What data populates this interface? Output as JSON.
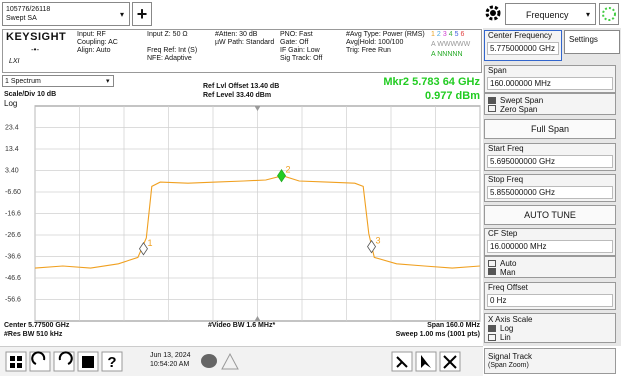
{
  "top_bar": {
    "instrument_id": "105776/26118",
    "mode": "Swept SA",
    "menu": "Frequency"
  },
  "info_bar": {
    "brand": "KEYSIGHT",
    "input": [
      "Input: RF",
      "Coupling: AC",
      "Align: Auto"
    ],
    "reference": [
      "Input Z: 50 Ω",
      "Freq Ref: Int (S)",
      "NFE: Adaptive"
    ],
    "attenuation": [
      "#Atten: 30 dB",
      "µW Path: Standard"
    ],
    "sweep": [
      "PNO: Fast",
      "Gate: Off",
      "IF Gain: Low",
      "Sig Track: Off"
    ],
    "average": [
      "#Avg Type: Power (RMS)",
      "Avg|Hold: 100/100",
      "Trig: Free Run"
    ],
    "trace_numbers": [
      {
        "label": "1",
        "color": "#e8a020"
      },
      {
        "label": "2",
        "color": "#4aa8e0"
      },
      {
        "label": "3",
        "color": "#d040d0"
      },
      {
        "label": "4",
        "color": "#40b040"
      },
      {
        "label": "5",
        "color": "#4060e0"
      },
      {
        "label": "6",
        "color": "#e04040"
      }
    ],
    "trace_types": "A WWWWW",
    "trace_detectors": "A NNNNN"
  },
  "plot": {
    "window": "1 Spectrum",
    "scale": "Scale/Div 10 dB",
    "scale_type": "Log",
    "ref_offset": "Ref Lvl Offset 13.40 dB",
    "ref_level": "Ref Level 33.40 dBm",
    "marker_readout": {
      "frequency": "Mkr2  5.783 64 GHz",
      "amplitude": "0.977 dBm"
    },
    "xlim": [
      5695,
      5855
    ],
    "xticks": [
      5695,
      5711,
      5727,
      5743,
      5759,
      5775,
      5791,
      5807,
      5823,
      5839,
      5855
    ],
    "ylim": [
      -66.6,
      33.4
    ],
    "yticks": [
      23.4,
      13.4,
      {
        "value": 3.4,
        "label": "3.40"
      },
      {
        "value": -6.6,
        "label": "-6.60"
      },
      -16.6,
      -26.6,
      -36.6,
      -46.6,
      -56.6
    ],
    "trace": {
      "color": "#f0a020",
      "x": [
        5695,
        5705,
        5715,
        5725,
        5732,
        5735,
        5737,
        5740,
        5750,
        5760,
        5770,
        5778,
        5784,
        5790,
        5800,
        5810,
        5813,
        5815,
        5817,
        5825,
        5835,
        5845,
        5855
      ],
      "y": [
        -42,
        -41,
        -42,
        -40,
        -37,
        -28,
        -4,
        -2,
        -2.5,
        -2,
        -1.5,
        -1,
        0.98,
        -1.5,
        -2,
        -2.5,
        -4,
        -26,
        -37,
        -40,
        -41,
        -42,
        -41
      ]
    },
    "markers": [
      {
        "label": "1",
        "x": 5734,
        "y": -33
      },
      {
        "label": "2",
        "x": 5783.64,
        "y": 0.977
      },
      {
        "label": "3",
        "x": 5816,
        "y": -32
      }
    ],
    "footer": {
      "center": "Center 5.77500 GHz",
      "res_bw": "#Res BW 510 kHz",
      "video_bw": "#Video BW 1.6 MHz*",
      "span": "Span 160.0 MHz",
      "sweep": "Sweep 1.00 ms (1001 pts)"
    }
  },
  "right_panel": {
    "center_frequency": {
      "label": "Center Frequency",
      "value": "5.775000000 GHz"
    },
    "settings_tab": "Settings",
    "span": {
      "label": "Span",
      "value": "160.000000 MHz"
    },
    "span_modes": [
      "Swept Span",
      "Zero Span"
    ],
    "full_span": "Full Span",
    "start_freq": {
      "label": "Start Freq",
      "value": "5.695000000 GHz"
    },
    "stop_freq": {
      "label": "Stop Freq",
      "value": "5.855000000 GHz"
    },
    "auto_tune": "AUTO TUNE",
    "cf_step": {
      "label": "CF Step",
      "value": "16.000000 MHz"
    },
    "cf_step_modes": [
      "Auto",
      "Man"
    ],
    "freq_offset": {
      "label": "Freq Offset",
      "value": "0 Hz"
    },
    "x_axis_scale": {
      "label": "X Axis Scale",
      "options": [
        "Log",
        "Lin"
      ]
    },
    "signal_track": {
      "label": "Signal Track",
      "sub": "(Span Zoom)"
    }
  },
  "taskbar": {
    "date": "Jun 13, 2024",
    "time": "10:54:20 AM"
  }
}
